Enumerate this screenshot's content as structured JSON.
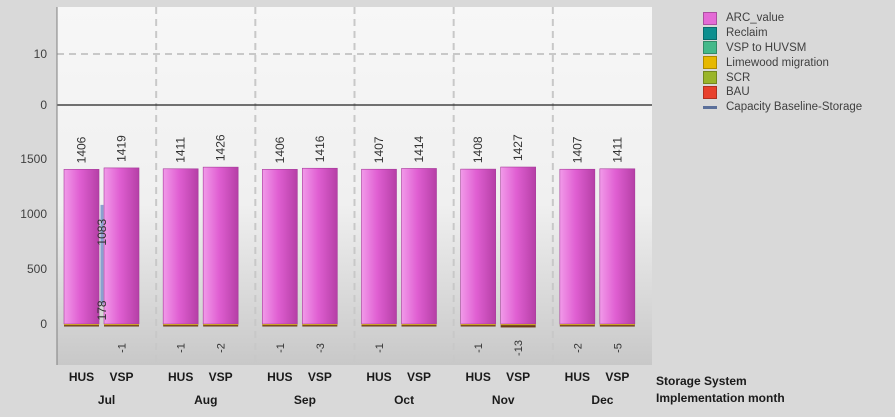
{
  "chart_data": {
    "type": "bar",
    "stacked": true,
    "layout": "two panels sharing x axis: upper panel y 0–10+ (empty), lower panel y 0–1500+",
    "xlabel_inner": "Storage System",
    "xlabel_outer": "Implementation month",
    "months": [
      "Jul",
      "Aug",
      "Sep",
      "Oct",
      "Nov",
      "Dec"
    ],
    "systems": [
      "HUS",
      "VSP"
    ],
    "upper_panel": {
      "yticks": [
        "10",
        "0"
      ],
      "ylim": [
        0,
        18
      ]
    },
    "lower_panel": {
      "yticks": [
        "1500",
        "1000",
        "500",
        "0"
      ],
      "ylim": [
        -380,
        1720
      ]
    },
    "bars": [
      {
        "month": "Jul",
        "system": "HUS",
        "total": 1406,
        "total_label": "1406",
        "bau": -1,
        "bau_label": ""
      },
      {
        "month": "Jul",
        "system": "VSP",
        "total": 1419,
        "total_label": "1419",
        "bau": -1,
        "bau_label": "-1"
      },
      {
        "month": "Aug",
        "system": "HUS",
        "total": 1411,
        "total_label": "1411",
        "bau": -1,
        "bau_label": "-1"
      },
      {
        "month": "Aug",
        "system": "VSP",
        "total": 1426,
        "total_label": "1426",
        "bau": -2,
        "bau_label": "-2"
      },
      {
        "month": "Sep",
        "system": "HUS",
        "total": 1406,
        "total_label": "1406",
        "bau": -1,
        "bau_label": "-1"
      },
      {
        "month": "Sep",
        "system": "VSP",
        "total": 1416,
        "total_label": "1416",
        "bau": -3,
        "bau_label": "-3"
      },
      {
        "month": "Oct",
        "system": "HUS",
        "total": 1407,
        "total_label": "1407",
        "bau": -1,
        "bau_label": "-1"
      },
      {
        "month": "Oct",
        "system": "VSP",
        "total": 1414,
        "total_label": "1414",
        "bau": 0,
        "bau_label": ""
      },
      {
        "month": "Nov",
        "system": "HUS",
        "total": 1408,
        "total_label": "1408",
        "bau": -1,
        "bau_label": "-1"
      },
      {
        "month": "Nov",
        "system": "VSP",
        "total": 1427,
        "total_label": "1427",
        "bau": -13,
        "bau_label": "-13"
      },
      {
        "month": "Dec",
        "system": "HUS",
        "total": 1407,
        "total_label": "1407",
        "bau": -2,
        "bau_label": "-2"
      },
      {
        "month": "Dec",
        "system": "VSP",
        "total": 1411,
        "total_label": "1411",
        "bau": -5,
        "bau_label": "-5"
      }
    ],
    "baseline_line": {
      "month": "Jul",
      "values": [
        178,
        1083
      ],
      "labels": [
        "178",
        "1083"
      ]
    },
    "legend": {
      "placement": "right",
      "entries": [
        {
          "label": "ARC_value",
          "color": "#e46ad6",
          "kind": "box"
        },
        {
          "label": "Reclaim",
          "color": "#0e8f8f",
          "kind": "box"
        },
        {
          "label": "VSP to HUVSM",
          "color": "#44b98a",
          "kind": "box"
        },
        {
          "label": "Limewood migration",
          "color": "#e6b800",
          "kind": "box"
        },
        {
          "label": "SCR",
          "color": "#9ab52a",
          "kind": "box"
        },
        {
          "label": "BAU",
          "color": "#e8402c",
          "kind": "box"
        },
        {
          "label": "Capacity Baseline-Storage",
          "color": "#5b6f9a",
          "kind": "line"
        }
      ]
    },
    "grid": true
  }
}
